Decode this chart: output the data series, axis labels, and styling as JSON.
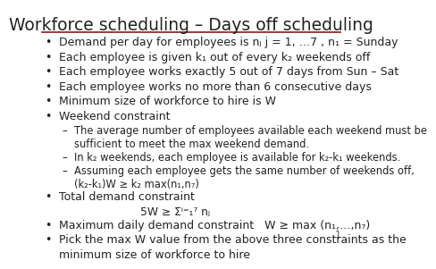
{
  "title": "Workforce scheduling – Days off scheduling",
  "title_fontsize": 13.5,
  "title_color": "#222222",
  "background_color": "#ffffff",
  "line_color": "#8B1a1a",
  "page_number": "1",
  "bullet_color": "#222222",
  "bullet_fontsize": 9.0,
  "sub_bullet_fontsize": 8.3,
  "bullets": [
    {
      "text": "Demand per day for employees is nⱼ j = 1, …7 , n₁ = Sunday",
      "level": 0
    },
    {
      "text": "Each employee is given k₁ out of every k₂ weekends off",
      "level": 0
    },
    {
      "text": "Each employee works exactly 5 out of 7 days from Sun – Sat",
      "level": 0
    },
    {
      "text": "Each employee works no more than 6 consecutive days",
      "level": 0
    },
    {
      "text": "Minimum size of workforce to hire is W",
      "level": 0
    },
    {
      "text": "Weekend constraint",
      "level": 0
    },
    {
      "text": "The average number of employees available each weekend must be\nsufficient to meet the max weekend demand.",
      "level": 1
    },
    {
      "text": "In k₂ weekends, each employee is available for k₂-k₁ weekends.",
      "level": 1
    },
    {
      "text": "Assuming each employee gets the same number of weekends off,\n(k₂-k₁)W ≥ k₂ max(n₁,n₇)",
      "level": 1
    },
    {
      "text": "Total demand constraint",
      "level": 0
    },
    {
      "text": "5W ≥ Σⁱ⁼₁⁷ nⱼ",
      "level": 2
    },
    {
      "text": "Maximum daily demand constraint   W ≥ max (n₁,…,n₇)",
      "level": 0
    },
    {
      "text": "Pick the max W value from the above three constraints as the\nminimum size of workforce to hire",
      "level": 0
    }
  ]
}
